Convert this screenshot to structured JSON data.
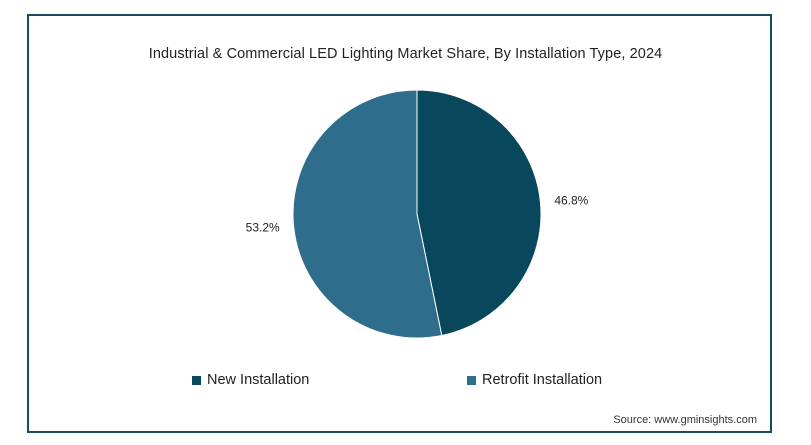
{
  "chart_data": {
    "type": "pie",
    "title": "Industrial & Commercial LED Lighting Market Share, By Installation Type, 2024",
    "slices": [
      {
        "name": "New Installation",
        "value": 46.8,
        "label": "46.8%",
        "color": "#08475c"
      },
      {
        "name": "Retrofit Installation",
        "value": 53.2,
        "label": "53.2%",
        "color": "#2f6d8c"
      }
    ],
    "legend_position": "bottom",
    "source": "Source: www.gminsights.com"
  }
}
